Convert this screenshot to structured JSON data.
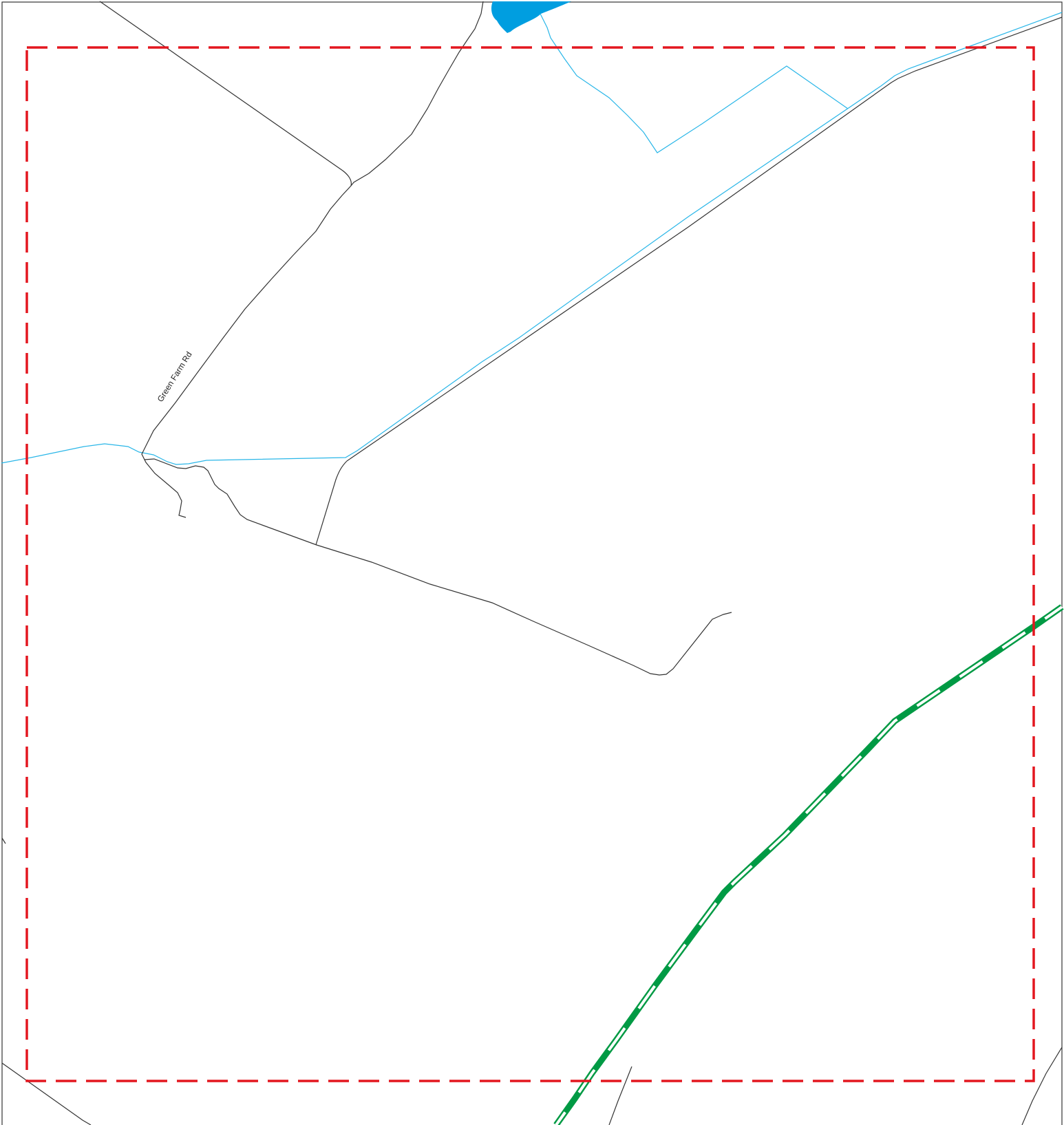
{
  "map": {
    "road_labels": {
      "green_farm_rd": "Green Farm Rd"
    },
    "colors": {
      "road": "#333333",
      "stream": "#29b6e8",
      "water_body": "#009ee0",
      "boundary": "#e3161f",
      "trail": "#009a44",
      "frame": "#333333"
    }
  }
}
